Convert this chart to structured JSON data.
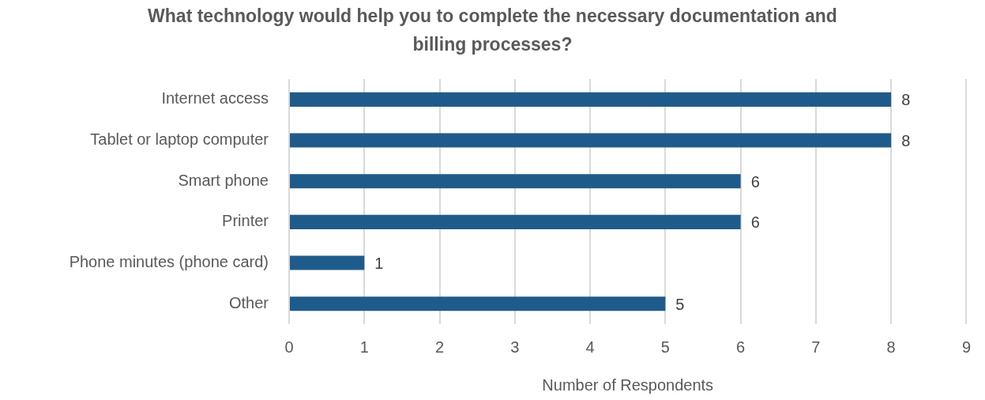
{
  "chart_data": {
    "type": "bar",
    "orientation": "horizontal",
    "title": "What technology would help you to complete the necessary documentation and billing processes?",
    "categories": [
      "Internet access",
      "Tablet or laptop computer",
      "Smart phone",
      "Printer",
      "Phone minutes (phone card)",
      "Other"
    ],
    "values": [
      8,
      8,
      6,
      6,
      1,
      5
    ],
    "color": "#1f5b8a",
    "xlabel": "Number of Respondents",
    "xlim": [
      0,
      9
    ],
    "xticks": [
      0,
      1,
      2,
      3,
      4,
      5,
      6,
      7,
      8,
      9
    ],
    "grid": "x",
    "data_labels": true
  }
}
